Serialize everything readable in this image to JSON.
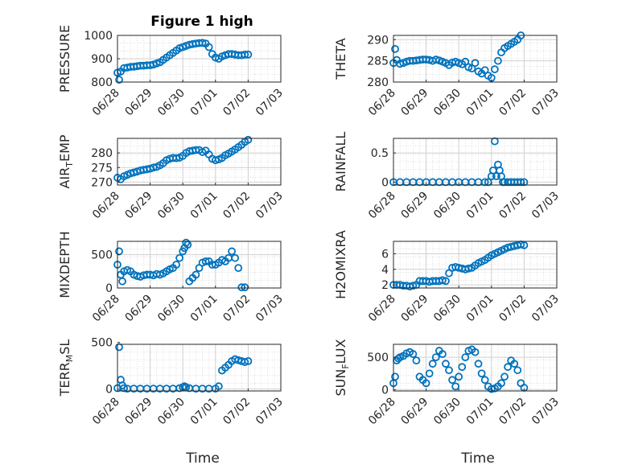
{
  "title": "Figure 1 high",
  "xlabel": "Time",
  "x_ticks": [
    "06/28",
    "06/29",
    "06/30",
    "07/01",
    "07/02",
    "07/03"
  ],
  "marker_color": "#0072BD",
  "chart_data": [
    {
      "type": "scatter",
      "title": "Figure 1 high",
      "ylabel": "PRESSURE",
      "ylim": [
        800,
        1000
      ],
      "yticks": [
        800,
        900,
        1000
      ],
      "xlim": [
        0,
        5
      ],
      "grid": "on",
      "x": [
        0,
        0.05,
        0.1,
        0.2,
        0.3,
        0.4,
        0.5,
        0.6,
        0.7,
        0.8,
        0.9,
        1.0,
        1.1,
        1.2,
        1.3,
        1.4,
        1.5,
        1.6,
        1.7,
        1.8,
        1.9,
        2.0,
        2.1,
        2.2,
        2.3,
        2.4,
        2.5,
        2.6,
        2.7,
        2.8,
        2.9,
        3.0,
        3.1,
        3.2,
        3.3,
        3.4,
        3.5,
        3.6,
        3.7,
        3.8,
        3.9,
        4.0
      ],
      "y": [
        840,
        810,
        845,
        860,
        862,
        865,
        866,
        868,
        870,
        870,
        872,
        872,
        875,
        880,
        885,
        895,
        905,
        915,
        925,
        935,
        945,
        950,
        955,
        960,
        963,
        965,
        967,
        968,
        965,
        950,
        920,
        905,
        900,
        910,
        915,
        920,
        920,
        918,
        915,
        915,
        918,
        918
      ]
    },
    {
      "type": "scatter",
      "ylabel": "THETA",
      "ylim": [
        280,
        291
      ],
      "yticks": [
        280,
        285,
        290
      ],
      "xlim": [
        0,
        5
      ],
      "grid": "on",
      "x": [
        0,
        0.05,
        0.1,
        0.2,
        0.3,
        0.4,
        0.5,
        0.6,
        0.7,
        0.8,
        0.9,
        1.0,
        1.1,
        1.2,
        1.3,
        1.4,
        1.5,
        1.6,
        1.7,
        1.8,
        1.9,
        2.0,
        2.1,
        2.2,
        2.3,
        2.4,
        2.5,
        2.6,
        2.7,
        2.8,
        2.9,
        3.0,
        3.1,
        3.2,
        3.3,
        3.4,
        3.5,
        3.6,
        3.7,
        3.8,
        3.9
      ],
      "y": [
        284.5,
        287.8,
        285.2,
        284.3,
        284.5,
        284.8,
        285,
        285,
        285.1,
        285.2,
        285.3,
        285.3,
        285.2,
        285,
        285.3,
        285.1,
        284.8,
        284.5,
        284,
        284.6,
        284.8,
        284.5,
        284.2,
        284.8,
        283.5,
        283.2,
        284.5,
        282.5,
        282,
        282.8,
        281.5,
        281,
        283,
        285,
        287,
        288,
        288.5,
        289,
        289.5,
        290,
        291
      ]
    },
    {
      "type": "scatter",
      "ylabel": "AIR_TEMP",
      "ylim": [
        269,
        285
      ],
      "yticks": [
        270,
        275,
        280
      ],
      "xlim": [
        0,
        5
      ],
      "grid": "on",
      "x": [
        0,
        0.1,
        0.2,
        0.3,
        0.4,
        0.5,
        0.6,
        0.7,
        0.8,
        0.9,
        1.0,
        1.1,
        1.2,
        1.3,
        1.4,
        1.5,
        1.6,
        1.7,
        1.8,
        1.9,
        2.0,
        2.1,
        2.2,
        2.3,
        2.4,
        2.5,
        2.6,
        2.7,
        2.8,
        2.9,
        3.0,
        3.1,
        3.2,
        3.3,
        3.4,
        3.5,
        3.6,
        3.7,
        3.8,
        3.9,
        4.0
      ],
      "y": [
        271.5,
        271,
        272,
        272.5,
        273,
        273.3,
        273.6,
        274,
        274.2,
        274.4,
        274.6,
        275,
        275.2,
        275.8,
        276.5,
        277.5,
        278,
        278.3,
        278.2,
        278.4,
        279,
        280,
        280.6,
        280.8,
        281,
        281,
        280.3,
        280.8,
        279.5,
        278,
        277.5,
        277.8,
        278.3,
        279.2,
        279.8,
        280.5,
        281.2,
        282,
        282.8,
        283.8,
        284.5
      ]
    },
    {
      "type": "scatter",
      "ylabel": "RAINFALL",
      "ylim": [
        -0.05,
        0.75
      ],
      "yticks": [
        0,
        0.5
      ],
      "xlim": [
        0,
        5
      ],
      "grid": "on",
      "x": [
        0,
        0.2,
        0.4,
        0.6,
        0.8,
        1.0,
        1.2,
        1.4,
        1.6,
        1.8,
        2.0,
        2.2,
        2.4,
        2.6,
        2.8,
        2.9,
        3.0,
        3.05,
        3.1,
        3.15,
        3.2,
        3.25,
        3.3,
        3.35,
        3.4,
        3.5,
        3.6,
        3.7,
        3.8,
        3.9,
        4.0
      ],
      "y": [
        0,
        0,
        0,
        0,
        0,
        0,
        0,
        0,
        0,
        0,
        0,
        0,
        0,
        0,
        0,
        0,
        0.1,
        0.2,
        0.7,
        0.1,
        0.3,
        0.2,
        0.1,
        0,
        0,
        0,
        0,
        0,
        0,
        0,
        0
      ]
    },
    {
      "type": "scatter",
      "ylabel": "MIXDEPTH",
      "ylim": [
        0,
        700
      ],
      "yticks": [
        0,
        500
      ],
      "xlim": [
        0,
        5
      ],
      "grid": "on",
      "x": [
        0,
        0.05,
        0.1,
        0.15,
        0.2,
        0.3,
        0.4,
        0.5,
        0.6,
        0.7,
        0.8,
        0.9,
        1.0,
        1.1,
        1.2,
        1.3,
        1.4,
        1.5,
        1.6,
        1.7,
        1.8,
        1.9,
        2.0,
        2.05,
        2.1,
        2.15,
        2.2,
        2.3,
        2.4,
        2.5,
        2.6,
        2.7,
        2.8,
        2.9,
        3.0,
        3.1,
        3.2,
        3.3,
        3.4,
        3.5,
        3.6,
        3.7,
        3.8,
        3.9
      ],
      "y": [
        350,
        550,
        200,
        100,
        250,
        270,
        250,
        200,
        180,
        170,
        190,
        200,
        200,
        190,
        210,
        200,
        220,
        250,
        280,
        300,
        350,
        450,
        550,
        600,
        680,
        650,
        100,
        150,
        200,
        300,
        380,
        400,
        400,
        350,
        350,
        380,
        420,
        400,
        450,
        550,
        450,
        300,
        10,
        10
      ]
    },
    {
      "type": "scatter",
      "ylabel": "H2OMIXRA",
      "ylim": [
        1.6,
        7.6
      ],
      "yticks": [
        2,
        4,
        6
      ],
      "xlim": [
        0,
        5
      ],
      "grid": "on",
      "x": [
        0,
        0.1,
        0.2,
        0.3,
        0.4,
        0.5,
        0.6,
        0.7,
        0.8,
        0.9,
        1.0,
        1.1,
        1.2,
        1.3,
        1.4,
        1.5,
        1.6,
        1.7,
        1.8,
        1.9,
        2.0,
        2.1,
        2.2,
        2.3,
        2.4,
        2.5,
        2.6,
        2.7,
        2.8,
        2.9,
        3.0,
        3.1,
        3.2,
        3.3,
        3.4,
        3.5,
        3.6,
        3.7,
        3.8,
        3.9,
        4.0
      ],
      "y": [
        2,
        2,
        2,
        1.9,
        1.9,
        1.8,
        1.9,
        2,
        2.5,
        2.5,
        2.5,
        2.4,
        2.5,
        2.5,
        2.5,
        2.6,
        2.5,
        3.5,
        4.2,
        4.3,
        4.2,
        4.1,
        4,
        4.1,
        4.2,
        4.5,
        4.8,
        5,
        5.2,
        5.5,
        5.8,
        6,
        6.2,
        6.4,
        6.6,
        6.8,
        6.9,
        7,
        7.1,
        7.2,
        7.1
      ]
    },
    {
      "type": "scatter",
      "ylabel": "TERR_MSL",
      "ylim": [
        -20,
        480
      ],
      "yticks": [
        0,
        500
      ],
      "xlim": [
        0,
        5
      ],
      "grid": "on",
      "x": [
        0,
        0.05,
        0.1,
        0.15,
        0.2,
        0.3,
        0.5,
        0.7,
        0.9,
        1.1,
        1.3,
        1.5,
        1.7,
        1.9,
        2.0,
        2.05,
        2.1,
        2.2,
        2.4,
        2.6,
        2.8,
        3.0,
        3.1,
        3.2,
        3.3,
        3.4,
        3.5,
        3.6,
        3.7,
        3.8,
        3.9,
        4.0
      ],
      "y": [
        10,
        450,
        100,
        40,
        10,
        5,
        5,
        5,
        5,
        5,
        5,
        5,
        5,
        10,
        20,
        30,
        20,
        10,
        5,
        5,
        5,
        5,
        30,
        200,
        230,
        260,
        300,
        320,
        310,
        300,
        290,
        300
      ]
    },
    {
      "type": "scatter",
      "ylabel": "SUN_FLUX",
      "ylim": [
        -20,
        700
      ],
      "yticks": [
        0,
        500
      ],
      "xlim": [
        0,
        5
      ],
      "grid": "on",
      "x": [
        0,
        0.05,
        0.1,
        0.15,
        0.2,
        0.3,
        0.4,
        0.5,
        0.6,
        0.7,
        0.8,
        0.9,
        1.0,
        1.1,
        1.2,
        1.3,
        1.4,
        1.5,
        1.6,
        1.7,
        1.8,
        1.9,
        2.0,
        2.1,
        2.2,
        2.3,
        2.4,
        2.5,
        2.6,
        2.7,
        2.8,
        2.9,
        3.0,
        3.1,
        3.2,
        3.3,
        3.4,
        3.5,
        3.6,
        3.7,
        3.8,
        3.9,
        4.0
      ],
      "y": [
        100,
        200,
        450,
        480,
        500,
        520,
        560,
        580,
        550,
        450,
        200,
        150,
        100,
        250,
        400,
        500,
        600,
        550,
        400,
        300,
        150,
        50,
        200,
        350,
        500,
        600,
        620,
        580,
        400,
        250,
        150,
        50,
        10,
        20,
        50,
        100,
        200,
        350,
        450,
        400,
        300,
        100,
        30
      ]
    }
  ]
}
